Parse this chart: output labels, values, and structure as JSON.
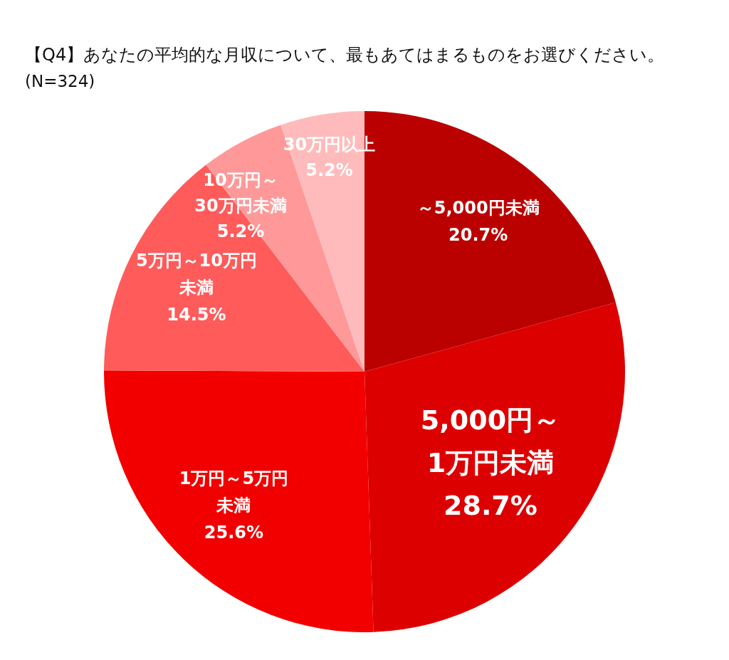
{
  "chart_data": {
    "type": "pie",
    "title": "【Q4】あなたの平均的な月収について、最もあてはまるものをお選びください。",
    "subtitle": "(N=324)",
    "categories": [
      "～5,000円未満",
      "5,000円～1万円未満",
      "1万円～5万円未満",
      "5万円～10万円未満",
      "10万円～30万円未満",
      "30万円以上"
    ],
    "values": [
      20.7,
      28.7,
      25.6,
      14.5,
      5.2,
      5.2
    ],
    "colors": [
      "#bb0000",
      "#dd0000",
      "#f20000",
      "#ff5b5b",
      "#ff9999",
      "#ffbbbb"
    ],
    "value_labels": [
      "20.7%",
      "28.7%",
      "25.6%",
      "14.5%",
      "5.2%",
      "5.2%"
    ]
  }
}
